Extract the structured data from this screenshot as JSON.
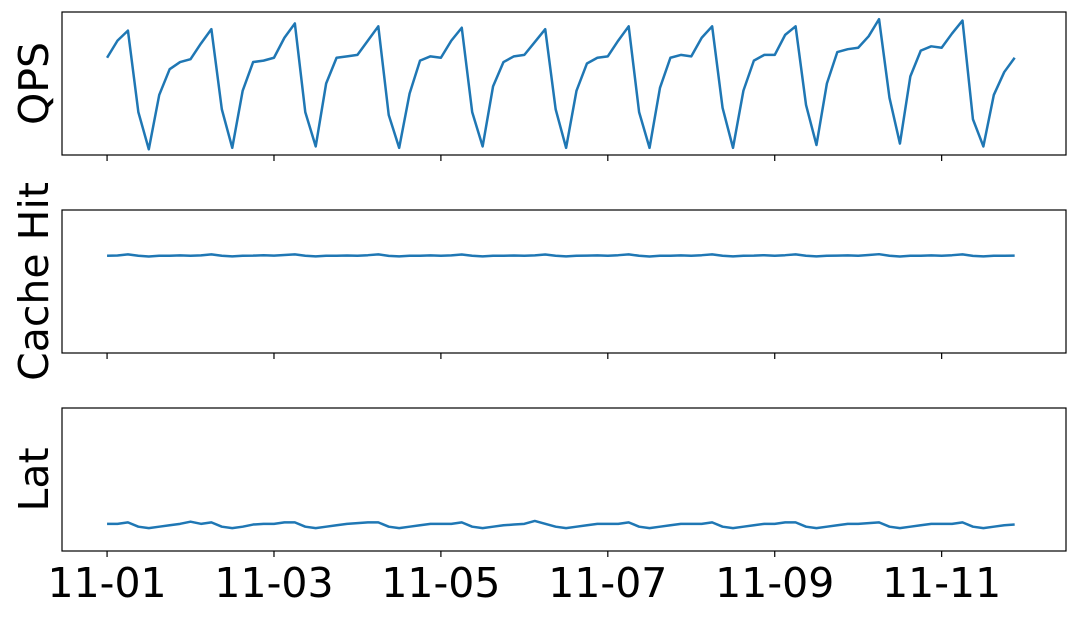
{
  "chart_data": [
    {
      "type": "line",
      "ylabel": "QPS",
      "x": [
        0,
        0.125,
        0.25,
        0.375,
        0.5,
        0.625,
        0.75,
        0.875,
        1,
        1.125,
        1.25,
        1.375,
        1.5,
        1.625,
        1.75,
        1.875,
        2,
        2.125,
        2.25,
        2.375,
        2.5,
        2.625,
        2.75,
        2.875,
        3,
        3.125,
        3.25,
        3.375,
        3.5,
        3.625,
        3.75,
        3.875,
        4,
        4.125,
        4.25,
        4.375,
        4.5,
        4.625,
        4.75,
        4.875,
        5,
        5.125,
        5.25,
        5.375,
        5.5,
        5.625,
        5.75,
        5.875,
        6,
        6.125,
        6.25,
        6.375,
        6.5,
        6.625,
        6.75,
        6.875,
        7,
        7.125,
        7.25,
        7.375,
        7.5,
        7.625,
        7.75,
        7.875,
        8,
        8.125,
        8.25,
        8.375,
        8.5,
        8.625,
        8.75,
        8.875,
        9,
        9.125,
        9.25,
        9.375,
        9.5,
        9.625,
        9.75,
        9.875,
        10,
        10.125,
        10.25,
        10.375,
        10.5,
        10.625,
        10.75,
        10.875
      ],
      "series": [
        {
          "name": "QPS",
          "color": "#1f77b4",
          "values": [
            0.68,
            0.8,
            0.87,
            0.3,
            0.04,
            0.42,
            0.6,
            0.65,
            0.67,
            0.78,
            0.88,
            0.32,
            0.05,
            0.45,
            0.65,
            0.66,
            0.68,
            0.82,
            0.92,
            0.3,
            0.06,
            0.5,
            0.68,
            0.69,
            0.7,
            0.8,
            0.9,
            0.28,
            0.05,
            0.43,
            0.66,
            0.69,
            0.68,
            0.8,
            0.89,
            0.3,
            0.06,
            0.48,
            0.65,
            0.69,
            0.7,
            0.79,
            0.88,
            0.32,
            0.05,
            0.45,
            0.64,
            0.68,
            0.69,
            0.8,
            0.9,
            0.3,
            0.05,
            0.47,
            0.68,
            0.7,
            0.69,
            0.82,
            0.9,
            0.33,
            0.05,
            0.45,
            0.66,
            0.7,
            0.7,
            0.84,
            0.9,
            0.35,
            0.07,
            0.5,
            0.72,
            0.74,
            0.75,
            0.83,
            0.95,
            0.4,
            0.08,
            0.55,
            0.73,
            0.76,
            0.75,
            0.85,
            0.94,
            0.25,
            0.06,
            0.42,
            0.58,
            0.68
          ]
        }
      ],
      "xlim": [
        -0.54,
        11.49
      ],
      "ylim": [
        0,
        1
      ]
    },
    {
      "type": "line",
      "ylabel": "Cache Hit",
      "x": [
        0,
        0.125,
        0.25,
        0.375,
        0.5,
        0.625,
        0.75,
        0.875,
        1,
        1.125,
        1.25,
        1.375,
        1.5,
        1.625,
        1.75,
        1.875,
        2,
        2.125,
        2.25,
        2.375,
        2.5,
        2.625,
        2.75,
        2.875,
        3,
        3.125,
        3.25,
        3.375,
        3.5,
        3.625,
        3.75,
        3.875,
        4,
        4.125,
        4.25,
        4.375,
        4.5,
        4.625,
        4.75,
        4.875,
        5,
        5.125,
        5.25,
        5.375,
        5.5,
        5.625,
        5.75,
        5.875,
        6,
        6.125,
        6.25,
        6.375,
        6.5,
        6.625,
        6.75,
        6.875,
        7,
        7.125,
        7.25,
        7.375,
        7.5,
        7.625,
        7.75,
        7.875,
        8,
        8.125,
        8.25,
        8.375,
        8.5,
        8.625,
        8.75,
        8.875,
        9,
        9.125,
        9.25,
        9.375,
        9.5,
        9.625,
        9.75,
        9.875,
        10,
        10.125,
        10.25,
        10.375,
        10.5,
        10.625,
        10.75,
        10.875
      ],
      "series": [
        {
          "name": "Cache Hit",
          "color": "#1f77b4",
          "values": [
            0.68,
            0.682,
            0.69,
            0.68,
            0.675,
            0.68,
            0.68,
            0.683,
            0.68,
            0.683,
            0.69,
            0.68,
            0.676,
            0.68,
            0.681,
            0.684,
            0.681,
            0.685,
            0.69,
            0.68,
            0.676,
            0.68,
            0.68,
            0.682,
            0.68,
            0.684,
            0.69,
            0.679,
            0.676,
            0.68,
            0.68,
            0.683,
            0.68,
            0.683,
            0.689,
            0.68,
            0.676,
            0.68,
            0.68,
            0.682,
            0.68,
            0.683,
            0.689,
            0.68,
            0.676,
            0.68,
            0.681,
            0.683,
            0.68,
            0.684,
            0.69,
            0.68,
            0.675,
            0.68,
            0.68,
            0.683,
            0.68,
            0.684,
            0.69,
            0.68,
            0.676,
            0.68,
            0.681,
            0.684,
            0.68,
            0.684,
            0.69,
            0.68,
            0.676,
            0.68,
            0.681,
            0.683,
            0.68,
            0.685,
            0.691,
            0.68,
            0.675,
            0.68,
            0.68,
            0.683,
            0.68,
            0.684,
            0.69,
            0.679,
            0.676,
            0.68,
            0.68,
            0.681
          ]
        }
      ],
      "xlim": [
        -0.54,
        11.49
      ],
      "ylim": [
        0,
        1
      ]
    },
    {
      "type": "line",
      "ylabel": "Lat",
      "x": [
        0,
        0.125,
        0.25,
        0.375,
        0.5,
        0.625,
        0.75,
        0.875,
        1,
        1.125,
        1.25,
        1.375,
        1.5,
        1.625,
        1.75,
        1.875,
        2,
        2.125,
        2.25,
        2.375,
        2.5,
        2.625,
        2.75,
        2.875,
        3,
        3.125,
        3.25,
        3.375,
        3.5,
        3.625,
        3.75,
        3.875,
        4,
        4.125,
        4.25,
        4.375,
        4.5,
        4.625,
        4.75,
        4.875,
        5,
        5.125,
        5.25,
        5.375,
        5.5,
        5.625,
        5.75,
        5.875,
        6,
        6.125,
        6.25,
        6.375,
        6.5,
        6.625,
        6.75,
        6.875,
        7,
        7.125,
        7.25,
        7.375,
        7.5,
        7.625,
        7.75,
        7.875,
        8,
        8.125,
        8.25,
        8.375,
        8.5,
        8.625,
        8.75,
        8.875,
        9,
        9.125,
        9.25,
        9.375,
        9.5,
        9.625,
        9.75,
        9.875,
        10,
        10.125,
        10.25,
        10.375,
        10.5,
        10.625,
        10.75,
        10.875
      ],
      "series": [
        {
          "name": "Lat",
          "color": "#1f77b4",
          "values": [
            0.19,
            0.19,
            0.2,
            0.17,
            0.16,
            0.17,
            0.18,
            0.19,
            0.205,
            0.19,
            0.2,
            0.17,
            0.16,
            0.17,
            0.185,
            0.19,
            0.19,
            0.2,
            0.2,
            0.17,
            0.16,
            0.17,
            0.18,
            0.19,
            0.195,
            0.2,
            0.2,
            0.17,
            0.16,
            0.17,
            0.18,
            0.19,
            0.19,
            0.19,
            0.2,
            0.17,
            0.16,
            0.17,
            0.18,
            0.185,
            0.19,
            0.21,
            0.19,
            0.17,
            0.16,
            0.17,
            0.18,
            0.19,
            0.19,
            0.19,
            0.2,
            0.17,
            0.16,
            0.17,
            0.18,
            0.19,
            0.19,
            0.19,
            0.2,
            0.17,
            0.16,
            0.17,
            0.18,
            0.19,
            0.19,
            0.2,
            0.2,
            0.17,
            0.16,
            0.17,
            0.18,
            0.19,
            0.19,
            0.195,
            0.2,
            0.17,
            0.16,
            0.17,
            0.18,
            0.19,
            0.19,
            0.19,
            0.2,
            0.17,
            0.16,
            0.17,
            0.18,
            0.185
          ]
        }
      ],
      "xlim": [
        -0.54,
        11.49
      ],
      "ylim": [
        0,
        1
      ],
      "xticks": [
        {
          "value": 0,
          "label": "11-01"
        },
        {
          "value": 2,
          "label": "11-03"
        },
        {
          "value": 4,
          "label": "11-05"
        },
        {
          "value": 6,
          "label": "11-07"
        },
        {
          "value": 8,
          "label": "11-09"
        },
        {
          "value": 10,
          "label": "11-11"
        }
      ]
    }
  ]
}
